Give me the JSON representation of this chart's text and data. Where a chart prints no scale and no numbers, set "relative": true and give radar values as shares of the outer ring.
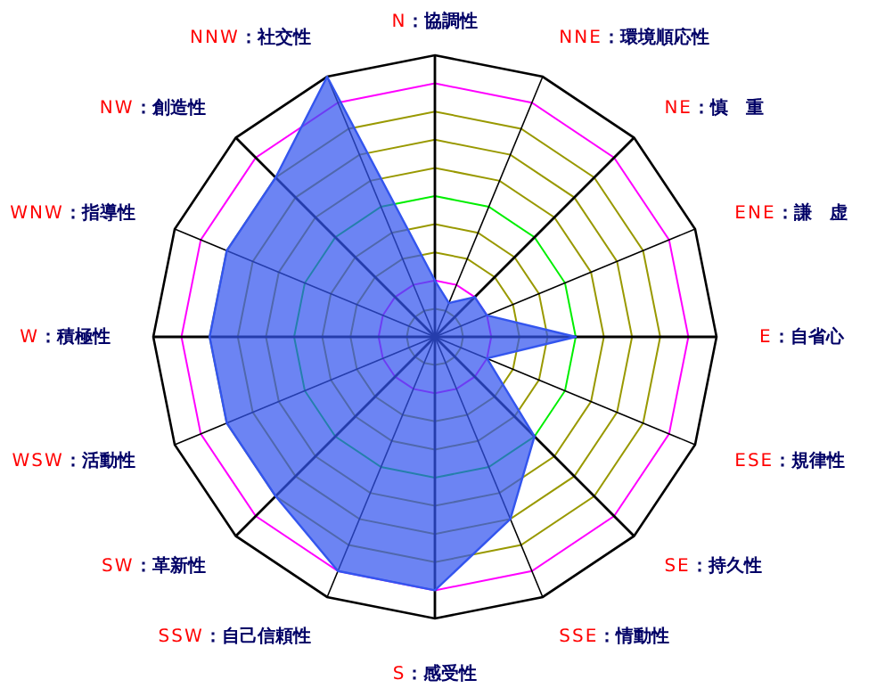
{
  "chart_data": {
    "type": "radar",
    "relative": true,
    "categories": [
      "N：協調性",
      "NNE：環境順応性",
      "NE：慎　重",
      "ENE：謙　虚",
      "E：自省心",
      "ESE：規律性",
      "SE：持久性",
      "SSE：情動性",
      "S：感受性",
      "SSW：自己信頼性",
      "SW：革新性",
      "WSW：活動性",
      "W：積極性",
      "WNW：指導性",
      "NW：創造性",
      "NNW：社交性"
    ],
    "series": [
      {
        "color": "#3355ee",
        "values": [
          0.2,
          0.13,
          0.2,
          0.2,
          0.5,
          0.2,
          0.5,
          0.7,
          0.9,
          0.9,
          0.8,
          0.8,
          0.8,
          0.8,
          0.8,
          1.0
        ]
      }
    ]
  }
}
